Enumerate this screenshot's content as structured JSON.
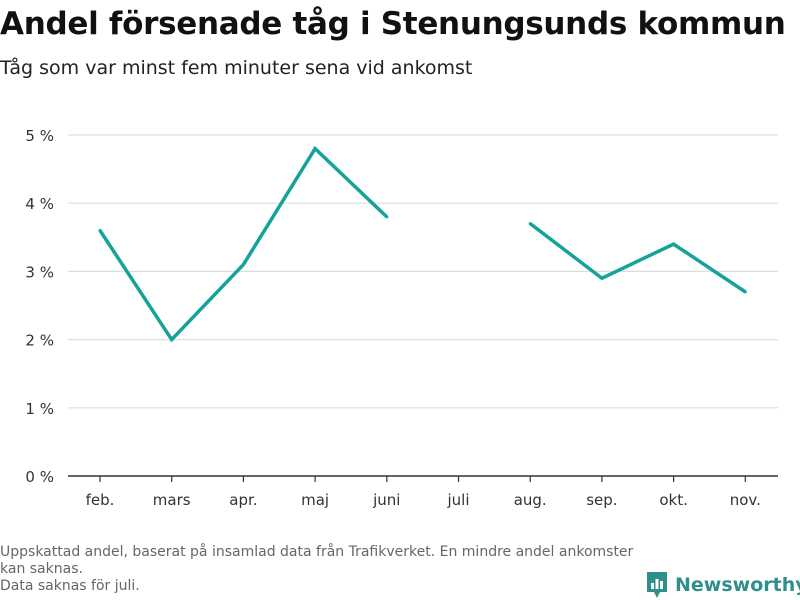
{
  "title": "Andel försenade tåg i Stenungsunds kommun",
  "subtitle": "Tåg som var minst fem minuter sena vid ankomst",
  "footnotes": [
    "Uppskattad andel, baserat på insamlad data från Trafikverket. En mindre andel ankomster kan saknas.",
    "Data saknas för juli."
  ],
  "brand": {
    "name": "Newsworthy",
    "icon": "newsworthy-logo-icon"
  },
  "colors": {
    "line": "#14a39a",
    "grid": "#dddddd",
    "axis": "#333333",
    "brand": "#2f8f8a"
  },
  "chart_data": {
    "type": "line",
    "categories": [
      "feb.",
      "mars",
      "apr.",
      "maj",
      "juni",
      "juli",
      "aug.",
      "sep.",
      "okt.",
      "nov."
    ],
    "series": [
      {
        "values": [
          3.6,
          2.0,
          3.1,
          4.8,
          3.8,
          null,
          3.7,
          2.9,
          3.4,
          2.7
        ]
      }
    ],
    "y_ticks": [
      0,
      1,
      2,
      3,
      4,
      5
    ],
    "y_tick_labels": [
      "0 %",
      "1 %",
      "2 %",
      "3 %",
      "4 %",
      "5 %"
    ],
    "ylim": [
      0,
      5
    ],
    "grid": true,
    "xlabel": "",
    "ylabel": ""
  }
}
